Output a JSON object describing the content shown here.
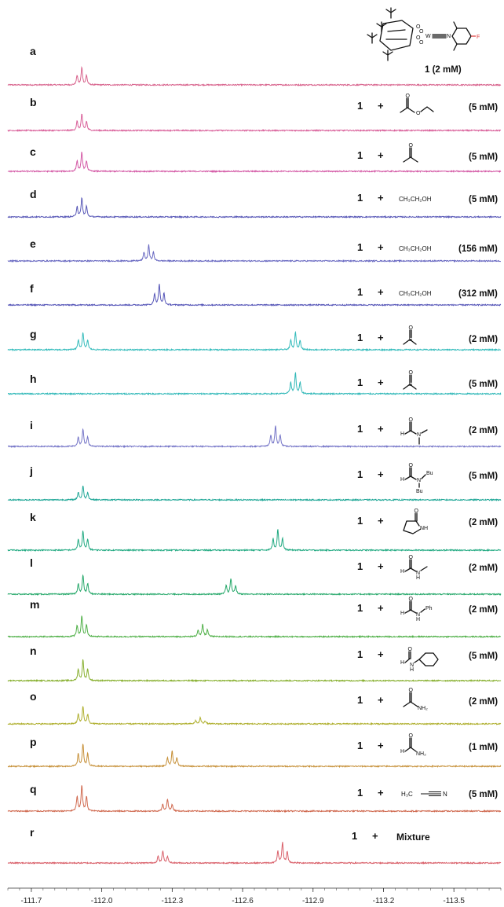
{
  "chart_data": {
    "type": "line",
    "xlim": [
      -111.6,
      -113.7
    ],
    "xticks": [
      "-111.7",
      "-112.0",
      "-112.3",
      "-112.6",
      "-112.9",
      "-113.2",
      "-113.5"
    ],
    "complex_label": "1 (2 mM)",
    "series": [
      {
        "id": "a",
        "color": "#d9668f",
        "conc": "",
        "reagent": "",
        "peaks": [
          {
            "x": -111.915,
            "h": 1.0
          }
        ]
      },
      {
        "id": "b",
        "color": "#d9609a",
        "conc": "(5 mM)",
        "reagent": "ethyl-acetate",
        "peaks": [
          {
            "x": -111.915,
            "h": 0.95
          }
        ]
      },
      {
        "id": "c",
        "color": "#d45aa6",
        "conc": "(5 mM)",
        "reagent": "acetone",
        "peaks": [
          {
            "x": -111.915,
            "h": 1.1
          }
        ]
      },
      {
        "id": "d",
        "color": "#5a5ab8",
        "conc": "(5 mM)",
        "reagent": "CH₃CH₂OH",
        "peaks": [
          {
            "x": -111.915,
            "h": 1.1
          }
        ]
      },
      {
        "id": "e",
        "color": "#6a6ac2",
        "conc": "(156 mM)",
        "reagent": "CH₃CH₂OH",
        "peaks": [
          {
            "x": -112.2,
            "h": 0.9
          }
        ]
      },
      {
        "id": "f",
        "color": "#5656b8",
        "conc": "(312 mM)",
        "reagent": "CH₃CH₂OH",
        "peaks": [
          {
            "x": -112.245,
            "h": 1.2
          }
        ]
      },
      {
        "id": "g",
        "color": "#35bcbc",
        "conc": "(2 mM)",
        "reagent": "dmso",
        "peaks": [
          {
            "x": -111.92,
            "h": 1.0
          },
          {
            "x": -112.825,
            "h": 1.0
          }
        ]
      },
      {
        "id": "h",
        "color": "#30b8b8",
        "conc": "(5 mM)",
        "reagent": "dmso",
        "peaks": [
          {
            "x": -112.825,
            "h": 1.2
          }
        ]
      },
      {
        "id": "i",
        "color": "#7676c8",
        "conc": "(2 mM)",
        "reagent": "dmf",
        "peaks": [
          {
            "x": -111.92,
            "h": 1.0
          },
          {
            "x": -112.74,
            "h": 1.2
          }
        ]
      },
      {
        "id": "j",
        "color": "#22a898",
        "conc": "(5 mM)",
        "reagent": "dbf",
        "peaks": [
          {
            "x": -111.92,
            "h": 0.8
          }
        ]
      },
      {
        "id": "k",
        "color": "#22aa82",
        "conc": "(2 mM)",
        "reagent": "pyrrolidone",
        "peaks": [
          {
            "x": -111.92,
            "h": 1.1
          },
          {
            "x": -112.75,
            "h": 1.2
          }
        ]
      },
      {
        "id": "l",
        "color": "#26a86a",
        "conc": "(2 mM)",
        "reagent": "nmf",
        "peaks": [
          {
            "x": -111.92,
            "h": 1.1
          },
          {
            "x": -112.55,
            "h": 0.9
          }
        ]
      },
      {
        "id": "m",
        "color": "#50b048",
        "conc": "(2 mM)",
        "reagent": "formanilide",
        "peaks": [
          {
            "x": -111.915,
            "h": 1.2
          },
          {
            "x": -112.43,
            "h": 0.7
          }
        ]
      },
      {
        "id": "n",
        "color": "#88b030",
        "conc": "(5 mM)",
        "reagent": "n-cyclohexylformamide",
        "peaks": [
          {
            "x": -111.92,
            "h": 1.2
          }
        ]
      },
      {
        "id": "o",
        "color": "#b0b030",
        "conc": "(2 mM)",
        "reagent": "acetamide",
        "peaks": [
          {
            "x": -111.92,
            "h": 1.0
          },
          {
            "x": -112.42,
            "h": 0.35
          }
        ]
      },
      {
        "id": "p",
        "color": "#c69038",
        "conc": "(1 mM)",
        "reagent": "formamide",
        "peaks": [
          {
            "x": -111.92,
            "h": 1.3
          },
          {
            "x": -112.3,
            "h": 0.9
          }
        ]
      },
      {
        "id": "q",
        "color": "#d06a50",
        "conc": "(5 mM)",
        "reagent": "H₃C—≡N",
        "peaks": [
          {
            "x": -111.915,
            "h": 1.5
          },
          {
            "x": -112.28,
            "h": 0.7
          }
        ]
      },
      {
        "id": "r",
        "color": "#d9606a",
        "conc": "",
        "reagent": "Mixture",
        "peaks": [
          {
            "x": -112.26,
            "h": 0.7
          },
          {
            "x": -112.77,
            "h": 1.2
          }
        ]
      }
    ]
  },
  "labels": {
    "one": "1",
    "plus": "+"
  }
}
